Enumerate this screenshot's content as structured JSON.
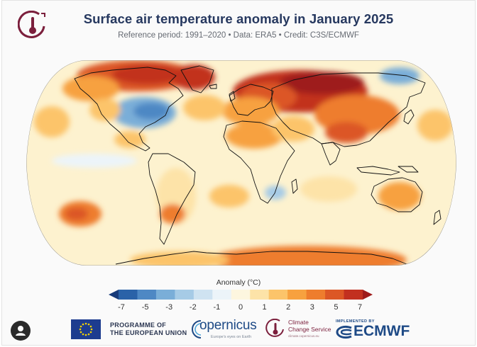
{
  "header": {
    "title": "Surface air temperature anomaly in January 2025",
    "subtitle": "Reference period: 1991–2020 • Data: ERA5 • Credit: C3S/ECMWF"
  },
  "legend": {
    "title": "Anomaly (°C)",
    "ticks": [
      "-7",
      "-5",
      "-3",
      "-2",
      "-1",
      "0",
      "1",
      "2",
      "3",
      "5",
      "7"
    ],
    "colors": [
      "#163a7a",
      "#2a62a8",
      "#4e88c4",
      "#7aaed8",
      "#a6cbe6",
      "#cfe3f1",
      "#ecf4f9",
      "#fdf6df",
      "#fde3a8",
      "#fcc46a",
      "#f7a13f",
      "#ee7d2d",
      "#dc5725",
      "#c2301f",
      "#9e1a1a"
    ]
  },
  "map": {
    "projection": "Robinson",
    "ocean_background": "#fdf2cf",
    "land_outline_color": "#111111",
    "coldest_color": "#2a62a8",
    "warmest_color": "#9e1a1a"
  },
  "footer": {
    "eu_line1": "PROGRAMME OF",
    "eu_line2": "THE EUROPEAN UNION",
    "copernicus_word": "opernicus",
    "copernicus_tag": "Europe's eyes on Earth",
    "c3s_line1": "Climate",
    "c3s_line2": "Change Service",
    "c3s_sub": "climate.copernicus.eu",
    "implemented_by": "IMPLEMENTED BY",
    "ecmwf": "ECMWF"
  }
}
